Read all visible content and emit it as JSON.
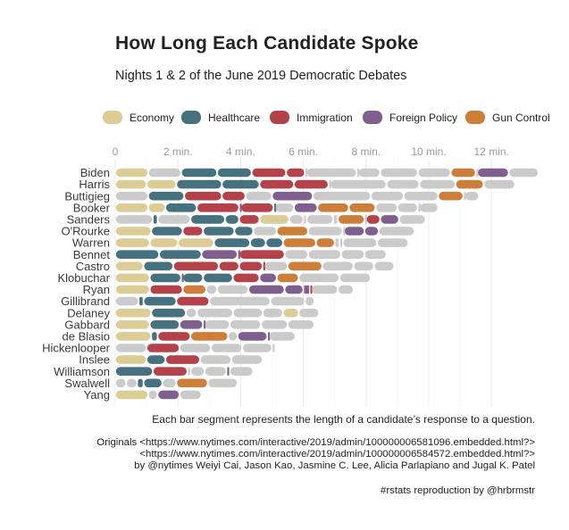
{
  "title": "How Long Each Candidate Spoke",
  "subtitle": "Nights 1 & 2 of the June 2019 Democratic Debates",
  "colors": {
    "Economy": "#dccc95",
    "Healthcare": "#46717f",
    "Immigration": "#b3424a",
    "Foreign Policy": "#7f5f8d",
    "Gun Control": "#cc7f3a",
    "Other": "#cbcbcb"
  },
  "chart_data": {
    "type": "bar",
    "orientation": "horizontal-stacked-segments",
    "title": "How Long Each Candidate Spoke",
    "subtitle": "Nights 1 & 2 of the June 2019 Democratic Debates",
    "xlabel": "",
    "ylabel": "",
    "xlim": [
      0,
      14
    ],
    "x_unit": "min.",
    "x_ticks": [
      0,
      2,
      4,
      6,
      8,
      10,
      12
    ],
    "x_tick_labels": [
      "0",
      "2 min.",
      "4 min.",
      "6 min.",
      "8 min.",
      "10 min.",
      "12 min."
    ],
    "grid": true,
    "legend_position": "top",
    "legend": [
      "Economy",
      "Healthcare",
      "Immigration",
      "Foreign Policy",
      "Gun Control"
    ],
    "candidates": [
      {
        "name": "Biden",
        "segments": [
          [
            "Economy",
            1.05
          ],
          [
            "Other",
            1.05
          ],
          [
            "Healthcare",
            1.15
          ],
          [
            "Healthcare",
            1.1
          ],
          [
            "Immigration",
            1.1
          ],
          [
            "Immigration",
            0.6
          ],
          [
            "Other",
            0.05
          ],
          [
            "Other",
            1.6
          ],
          [
            "Other",
            0.05
          ],
          [
            "Other",
            0.7
          ],
          [
            "Other",
            1.2
          ],
          [
            "Other",
            1.05
          ],
          [
            "Gun Control",
            0.8
          ],
          [
            "Other",
            0.05
          ],
          [
            "Foreign Policy",
            1.0
          ],
          [
            "Other",
            0.95
          ]
        ]
      },
      {
        "name": "Harris",
        "segments": [
          [
            "Economy",
            1.0
          ],
          [
            "Economy",
            0.95
          ],
          [
            "Healthcare",
            1.45
          ],
          [
            "Healthcare",
            1.2
          ],
          [
            "Immigration",
            1.1
          ],
          [
            "Immigration",
            1.1
          ],
          [
            "Other",
            0.05
          ],
          [
            "Other",
            1.8
          ],
          [
            "Other",
            1.05
          ],
          [
            "Other",
            1.15
          ],
          [
            "Gun Control",
            0.9
          ],
          [
            "Other",
            1.0
          ]
        ]
      },
      {
        "name": "Buttigieg",
        "segments": [
          [
            "Other",
            1.05
          ],
          [
            "Healthcare",
            1.15
          ],
          [
            "Immigration",
            1.2
          ],
          [
            "Immigration",
            0.75
          ],
          [
            "Other",
            0.85
          ],
          [
            "Foreign Policy",
            1.3
          ],
          [
            "Other",
            1.85
          ],
          [
            "Other",
            1.05
          ],
          [
            "Other",
            1.1
          ],
          [
            "Gun Control",
            0.8
          ],
          [
            "Other",
            0.05
          ],
          [
            "Other",
            0.45
          ]
        ]
      },
      {
        "name": "Booker",
        "segments": [
          [
            "Economy",
            1.05
          ],
          [
            "Economy",
            0.55
          ],
          [
            "Healthcare",
            1.0
          ],
          [
            "Immigration",
            1.35
          ],
          [
            "Foreign Policy",
            0.05
          ],
          [
            "Immigration",
            1.05
          ],
          [
            "Healthcare",
            0.05
          ],
          [
            "Other",
            0.6
          ],
          [
            "Foreign Policy",
            0.75
          ],
          [
            "Gun Control",
            1.0
          ],
          [
            "Gun Control",
            0.85
          ],
          [
            "Other",
            0.7
          ],
          [
            "Other",
            0.65
          ],
          [
            "Other",
            0.05
          ],
          [
            "Other",
            0.6
          ]
        ]
      },
      {
        "name": "Sanders",
        "segments": [
          [
            "Other",
            1.2
          ],
          [
            "Healthcare",
            0.15
          ],
          [
            "Other",
            1.05
          ],
          [
            "Healthcare",
            1.1
          ],
          [
            "Healthcare",
            0.45
          ],
          [
            "Immigration",
            0.65
          ],
          [
            "Economy",
            0.95
          ],
          [
            "Other",
            0.45
          ],
          [
            "Other",
            0.1
          ],
          [
            "Other",
            0.85
          ],
          [
            "Other",
            0.15
          ],
          [
            "Gun Control",
            0.85
          ],
          [
            "Other",
            0.05
          ],
          [
            "Immigration",
            0.45
          ],
          [
            "Foreign Policy",
            0.6
          ],
          [
            "Other",
            0.85
          ]
        ]
      },
      {
        "name": "O'Rourke",
        "segments": [
          [
            "Economy",
            1.15
          ],
          [
            "Healthcare",
            1.0
          ],
          [
            "Immigration",
            0.65
          ],
          [
            "Healthcare",
            1.0
          ],
          [
            "Healthcare",
            0.6
          ],
          [
            "Other",
            0.75
          ],
          [
            "Gun Control",
            1.0
          ],
          [
            "Other",
            1.1
          ],
          [
            "Other",
            0.05
          ],
          [
            "Foreign Policy",
            0.65
          ],
          [
            "Foreign Policy",
            0.45
          ],
          [
            "Other",
            1.15
          ]
        ]
      },
      {
        "name": "Warren",
        "segments": [
          [
            "Economy",
            1.1
          ],
          [
            "Economy",
            0.9
          ],
          [
            "Economy",
            1.15
          ],
          [
            "Healthcare",
            1.15
          ],
          [
            "Healthcare",
            0.5
          ],
          [
            "Healthcare",
            0.55
          ],
          [
            "Gun Control",
            1.05
          ],
          [
            "Gun Control",
            0.6
          ],
          [
            "Other",
            0.15
          ],
          [
            "Other",
            0.1
          ],
          [
            "Other",
            1.1
          ],
          [
            "Other",
            1.0
          ]
        ]
      },
      {
        "name": "Bennet",
        "segments": [
          [
            "Healthcare",
            1.4
          ],
          [
            "Healthcare",
            1.35
          ],
          [
            "Foreign Policy",
            1.15
          ],
          [
            "Foreign Policy",
            0.05
          ],
          [
            "Immigration",
            1.45
          ],
          [
            "Other",
            0.75
          ],
          [
            "Other",
            1.05
          ],
          [
            "Other",
            0.75
          ],
          [
            "Other",
            0.7
          ]
        ]
      },
      {
        "name": "Castro",
        "segments": [
          [
            "Economy",
            0.9
          ],
          [
            "Healthcare",
            0.95
          ],
          [
            "Immigration",
            1.45
          ],
          [
            "Immigration",
            0.65
          ],
          [
            "Immigration",
            0.75
          ],
          [
            "Immigration",
            0.05
          ],
          [
            "Other",
            0.75
          ],
          [
            "Gun Control",
            1.1
          ],
          [
            "Other",
            1.0
          ],
          [
            "Other",
            0.65
          ],
          [
            "Other",
            0.65
          ]
        ]
      },
      {
        "name": "Klobuchar",
        "segments": [
          [
            "Economy",
            1.1
          ],
          [
            "Healthcare",
            1.0
          ],
          [
            "Foreign Policy",
            0.05
          ],
          [
            "Healthcare",
            0.65
          ],
          [
            "Healthcare",
            0.95
          ],
          [
            "Immigration",
            0.85
          ],
          [
            "Foreign Policy",
            0.55
          ],
          [
            "Gun Control",
            0.7
          ],
          [
            "Other",
            1.3
          ],
          [
            "Other",
            1.0
          ]
        ]
      },
      {
        "name": "Ryan",
        "segments": [
          [
            "Economy",
            1.1
          ],
          [
            "Immigration",
            1.05
          ],
          [
            "Gun Control",
            0.75
          ],
          [
            "Other",
            0.35
          ],
          [
            "Other",
            1.0
          ],
          [
            "Foreign Policy",
            1.15
          ],
          [
            "Foreign Policy",
            0.6
          ],
          [
            "Foreign Policy",
            0.05
          ],
          [
            "Foreign Policy",
            0.05
          ],
          [
            "Foreign Policy",
            0.1
          ],
          [
            "Immigration",
            0.05
          ],
          [
            "Other",
            0.85
          ],
          [
            "Other",
            0.5
          ]
        ]
      },
      {
        "name": "Gillibrand",
        "segments": [
          [
            "Other",
            0.75
          ],
          [
            "Healthcare",
            0.15
          ],
          [
            "Healthcare",
            1.05
          ],
          [
            "Immigration",
            1.05
          ],
          [
            "Other",
            1.95
          ],
          [
            "Other",
            1.1
          ],
          [
            "Other",
            0.3
          ]
        ]
      },
      {
        "name": "Delaney",
        "segments": [
          [
            "Economy",
            1.15
          ],
          [
            "Healthcare",
            1.1
          ],
          [
            "Other",
            0.35
          ],
          [
            "Other",
            1.15
          ],
          [
            "Other",
            0.95
          ],
          [
            "Other",
            0.65
          ],
          [
            "Economy",
            0.5
          ],
          [
            "Other",
            0.65
          ]
        ]
      },
      {
        "name": "Gabbard",
        "segments": [
          [
            "Economy",
            1.1
          ],
          [
            "Healthcare",
            0.95
          ],
          [
            "Foreign Policy",
            0.75
          ],
          [
            "Foreign Policy",
            0.05
          ],
          [
            "Other",
            0.8
          ],
          [
            "Other",
            1.0
          ],
          [
            "Other",
            0.85
          ],
          [
            "Other",
            0.85
          ]
        ]
      },
      {
        "name": "de Blasio",
        "segments": [
          [
            "Economy",
            1.15
          ],
          [
            "Healthcare",
            0.2
          ],
          [
            "Immigration",
            1.05
          ],
          [
            "Gun Control",
            1.2
          ],
          [
            "Other",
            0.3
          ],
          [
            "Foreign Policy",
            0.95
          ],
          [
            "Foreign Policy",
            0.05
          ],
          [
            "Other",
            0.85
          ]
        ]
      },
      {
        "name": "Hickenlooper",
        "segments": [
          [
            "Other",
            1.0
          ],
          [
            "Immigration",
            1.05
          ],
          [
            "Other",
            1.0
          ],
          [
            "Other",
            1.0
          ],
          [
            "Other",
            0.95
          ],
          [
            "Other",
            0.05
          ]
        ]
      },
      {
        "name": "Inslee",
        "segments": [
          [
            "Economy",
            1.0
          ],
          [
            "Healthcare",
            0.6
          ],
          [
            "Immigration",
            1.1
          ],
          [
            "Other",
            1.0
          ],
          [
            "Other",
            1.0
          ]
        ]
      },
      {
        "name": "Williamson",
        "segments": [
          [
            "Healthcare",
            1.2
          ],
          [
            "Immigration",
            1.1
          ],
          [
            "Other",
            0.1
          ],
          [
            "Other",
            0.45
          ],
          [
            "Other",
            0.7
          ],
          [
            "Foreign Policy",
            0.1
          ],
          [
            "Other",
            0.75
          ]
        ]
      },
      {
        "name": "Swalwell",
        "segments": [
          [
            "Other",
            0.35
          ],
          [
            "Other",
            0.35
          ],
          [
            "Healthcare",
            0.2
          ],
          [
            "Healthcare",
            0.6
          ],
          [
            "Other",
            0.45
          ],
          [
            "Gun Control",
            1.0
          ],
          [
            "Other",
            0.95
          ]
        ]
      },
      {
        "name": "Yang",
        "segments": [
          [
            "Economy",
            1.05
          ],
          [
            "Other",
            0.3
          ],
          [
            "Foreign Policy",
            0.7
          ],
          [
            "Other",
            0.7
          ]
        ]
      }
    ]
  },
  "caption": "Each bar segment represents the length of a candidate’s response to a question.",
  "originals": [
    "Originals <https://www.nytimes.com/interactive/2019/admin/100000006581096.embedded.html?>",
    "<https://www.nytimes.com/interactive/2019/admin/100000006584572.embedded.html?>",
    "by @nytimes Weiyi Cai, Jason Kao, Jasmine C. Lee, Alicia Parlapiano and Jugal K. Patel"
  ],
  "credit": "#rstats reproduction by @hrbrmstr"
}
